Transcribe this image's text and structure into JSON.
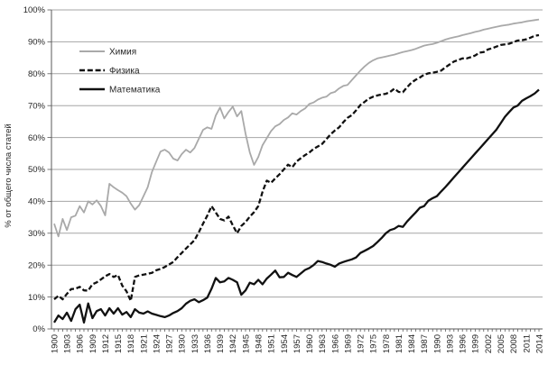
{
  "chart_data": {
    "type": "line",
    "title": "",
    "xlabel": "",
    "ylabel": "% от общего числа статей",
    "ylim": [
      0,
      100
    ],
    "y_tick_step": 10,
    "grid": true,
    "legend_position": "inside-top-left",
    "x_years": {
      "start": 1900,
      "end": 2014,
      "step": 1
    },
    "x_tick_labels": [
      "1900",
      "1903",
      "1906",
      "1909",
      "1912",
      "1915",
      "1918",
      "1921",
      "1924",
      "1927",
      "1930",
      "1933",
      "1936",
      "1939",
      "1942",
      "1945",
      "1948",
      "1951",
      "1954",
      "1957",
      "1960",
      "1963",
      "1966",
      "1969",
      "1972",
      "1975",
      "1978",
      "1981",
      "1984",
      "1987",
      "1990",
      "1993",
      "1996",
      "1999",
      "2002",
      "2005",
      "2008",
      "2011",
      "2014"
    ],
    "y_tick_labels": [
      "0%",
      "10%",
      "20%",
      "30%",
      "40%",
      "50%",
      "60%",
      "70%",
      "80%",
      "90%",
      "100%"
    ],
    "series": [
      {
        "name": "Химия",
        "color": "#a9a9a9",
        "style": "solid",
        "stroke_width": 1.8,
        "values": [
          33,
          29,
          34.5,
          31,
          35,
          35.5,
          38.5,
          36.5,
          40,
          39,
          40.3,
          38.5,
          35.6,
          45.5,
          44.4,
          43.5,
          42.7,
          41.6,
          39.3,
          37.4,
          38.8,
          41.6,
          44.4,
          49.2,
          52.5,
          55.6,
          56.2,
          55.3,
          53.4,
          52.8,
          54.8,
          56.2,
          55.3,
          56.7,
          59.6,
          62.4,
          63.2,
          62.7,
          66.9,
          69.4,
          66,
          68,
          69.7,
          66.6,
          68.3,
          61.2,
          55.3,
          51.4,
          53.9,
          57.6,
          59.8,
          62,
          63.5,
          64.2,
          65.5,
          66.3,
          67.6,
          67.2,
          68.3,
          69.1,
          70.5,
          71,
          71.9,
          72.5,
          72.8,
          73.9,
          74.3,
          75.4,
          76.2,
          76.5,
          78,
          79.5,
          81,
          82.3,
          83.4,
          84.2,
          84.8,
          85.1,
          85.4,
          85.7,
          86,
          86.4,
          86.8,
          87.1,
          87.4,
          87.8,
          88.3,
          88.8,
          89.1,
          89.3,
          89.7,
          90.2,
          90.7,
          91.1,
          91.4,
          91.7,
          92.1,
          92.4,
          92.7,
          93.1,
          93.4,
          93.8,
          94.1,
          94.4,
          94.7,
          95,
          95.2,
          95.4,
          95.7,
          95.9,
          96.1,
          96.4,
          96.6,
          96.8,
          97
        ]
      },
      {
        "name": "Физика",
        "color": "#111111",
        "style": "dashed",
        "stroke_width": 2.3,
        "values": [
          9.3,
          10.4,
          9.3,
          11,
          12.5,
          12.6,
          13.2,
          12.1,
          12,
          14,
          14.6,
          15.5,
          16.5,
          17.2,
          16.3,
          16.9,
          13.6,
          11.8,
          8.8,
          16.3,
          16.8,
          17,
          17.3,
          17.6,
          18.4,
          18.8,
          19.4,
          20.2,
          21,
          22.5,
          23.8,
          25.2,
          26.5,
          27.8,
          30.3,
          33,
          35.5,
          38.5,
          36.5,
          34.5,
          34,
          35.2,
          32.5,
          30,
          32.3,
          33.5,
          35.2,
          36.6,
          38.5,
          43,
          46.5,
          45.8,
          47.2,
          48.5,
          50,
          51.5,
          50.7,
          52.5,
          53.5,
          54.5,
          55.3,
          56.4,
          57.2,
          58,
          59.5,
          61,
          62.2,
          63.2,
          64.8,
          66.2,
          67,
          68.5,
          70.2,
          71.2,
          72.2,
          72.8,
          73.2,
          73.5,
          73.7,
          74.3,
          75.3,
          74.3,
          74.2,
          75.8,
          77.2,
          78.1,
          78.8,
          79.7,
          80.1,
          80.3,
          80.6,
          81,
          82,
          82.9,
          83.8,
          84.3,
          84.8,
          84.8,
          85.2,
          85.7,
          86.6,
          86.8,
          87.6,
          88,
          88.5,
          89,
          89.2,
          89.4,
          89.9,
          90.4,
          90.5,
          90.8,
          91.3,
          91.9,
          92.1
        ]
      },
      {
        "name": "Математика",
        "color": "#111111",
        "style": "solid",
        "stroke_width": 2.3,
        "values": [
          2,
          4.2,
          3.1,
          5.1,
          2.5,
          6.2,
          7.6,
          2,
          8,
          3.4,
          5.6,
          6.2,
          4.2,
          6.5,
          4.8,
          6.5,
          4.5,
          5.3,
          3.7,
          6.2,
          5.1,
          4.8,
          5.5,
          4.8,
          4.4,
          4,
          3.7,
          4.2,
          5,
          5.6,
          6.5,
          7.9,
          8.8,
          9.3,
          8.4,
          9,
          9.8,
          12.6,
          16,
          14.6,
          14.9,
          16,
          15.4,
          14.6,
          10.7,
          12.1,
          14.5,
          14,
          15.4,
          14,
          15.8,
          17,
          18.3,
          16.2,
          16.3,
          17.6,
          16.9,
          16.3,
          17.4,
          18.5,
          19.1,
          20,
          21.3,
          21,
          20.5,
          20.1,
          19.5,
          20.5,
          21,
          21.4,
          21.8,
          22.4,
          23.8,
          24.5,
          25.2,
          26,
          27.2,
          28.5,
          30,
          31,
          31.4,
          32.3,
          32,
          33.7,
          35.1,
          36.5,
          38,
          38.5,
          40.2,
          41,
          41.6,
          43.1,
          44.5,
          46,
          47.5,
          49,
          50.5,
          52,
          53.5,
          55,
          56.5,
          58,
          59.5,
          61,
          62.5,
          64.5,
          66.5,
          68,
          69.4,
          70,
          71.5,
          72.3,
          73,
          73.8,
          75
        ]
      }
    ]
  },
  "legend": {
    "items": [
      {
        "label": "Химия",
        "style": "solid",
        "color": "#a9a9a9"
      },
      {
        "label": "Физика",
        "style": "dashed",
        "color": "#111111"
      },
      {
        "label": "Математика",
        "style": "solid",
        "color": "#111111"
      }
    ]
  },
  "colors": {
    "gridline": "#a6a6a6",
    "axis": "#595959",
    "text": "#262626",
    "background": "#ffffff"
  }
}
